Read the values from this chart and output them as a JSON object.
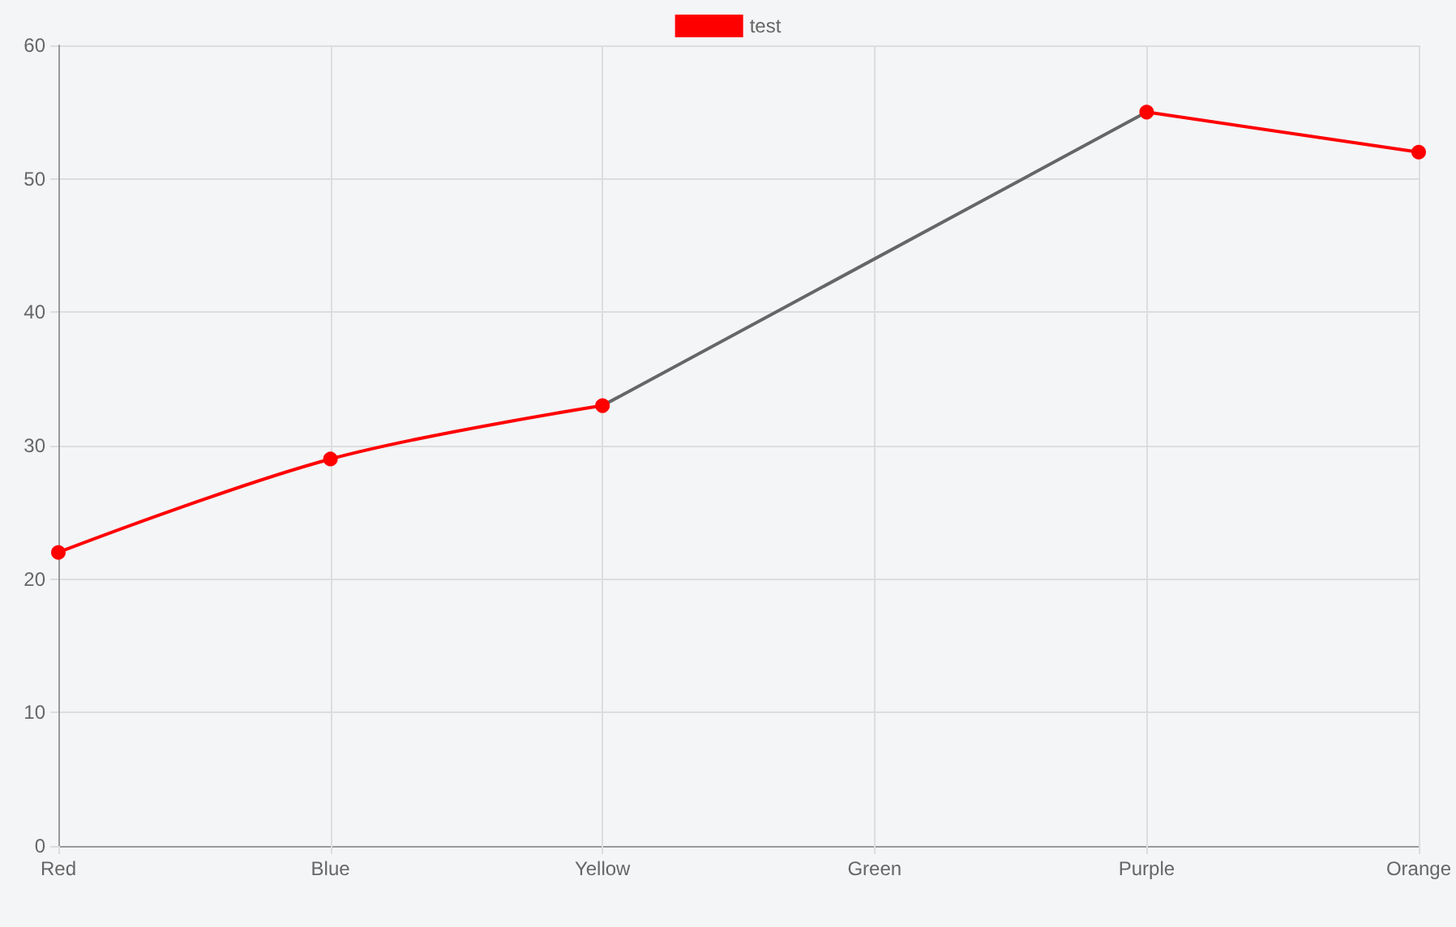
{
  "chart_data": {
    "type": "line",
    "categories": [
      "Red",
      "Blue",
      "Yellow",
      "Green",
      "Purple",
      "Orange"
    ],
    "series": [
      {
        "name": "test",
        "color": "#ff0000",
        "values": [
          22,
          29,
          33,
          null,
          55,
          52
        ]
      },
      {
        "color": "#666666",
        "values": [
          null,
          null,
          33,
          null,
          55,
          null
        ],
        "marker": "none"
      }
    ],
    "ylim": [
      0,
      60
    ],
    "yticks": [
      0,
      10,
      20,
      30,
      40,
      50,
      60
    ],
    "grid": true,
    "legend": "top",
    "marker": "circle",
    "line_style": "solid"
  }
}
